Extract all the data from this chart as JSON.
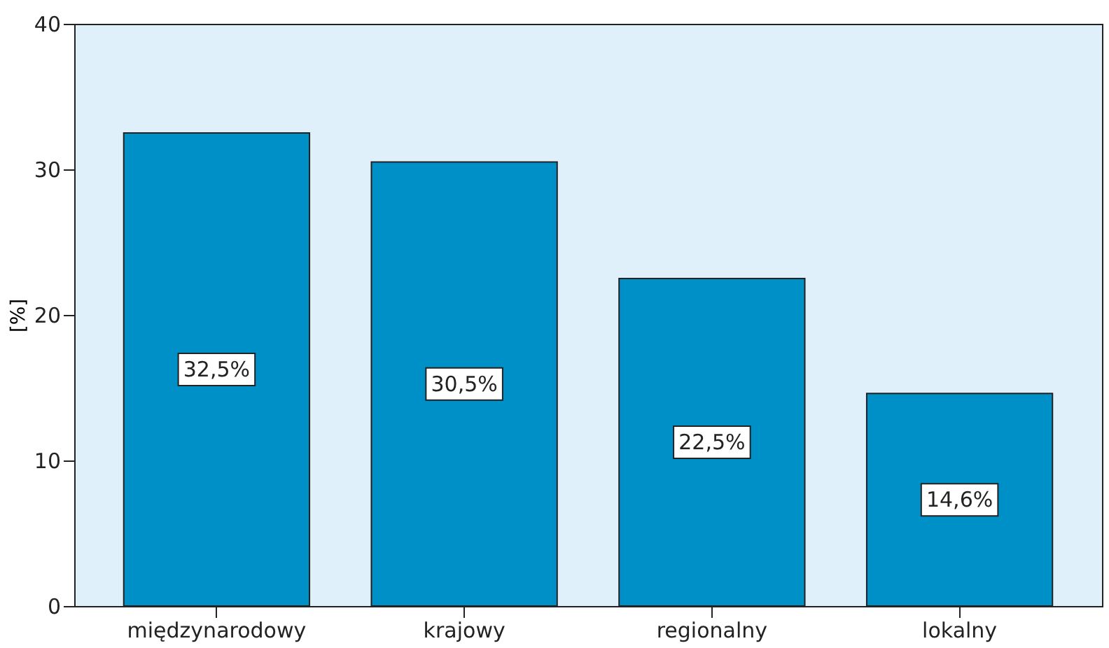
{
  "chart_data": {
    "type": "bar",
    "ylabel": "[%]",
    "categories": [
      "międzynarodowy",
      "krajowy",
      "regionalny",
      "lokalny"
    ],
    "values": [
      32.5,
      30.5,
      22.5,
      14.6
    ],
    "value_labels": [
      "32,5%",
      "30,5%",
      "22,5%",
      "14,6%"
    ],
    "color": "#0090c8",
    "ylim": [
      0,
      40
    ],
    "yticks": [
      0,
      10,
      20,
      30,
      40
    ],
    "grid": false
  }
}
